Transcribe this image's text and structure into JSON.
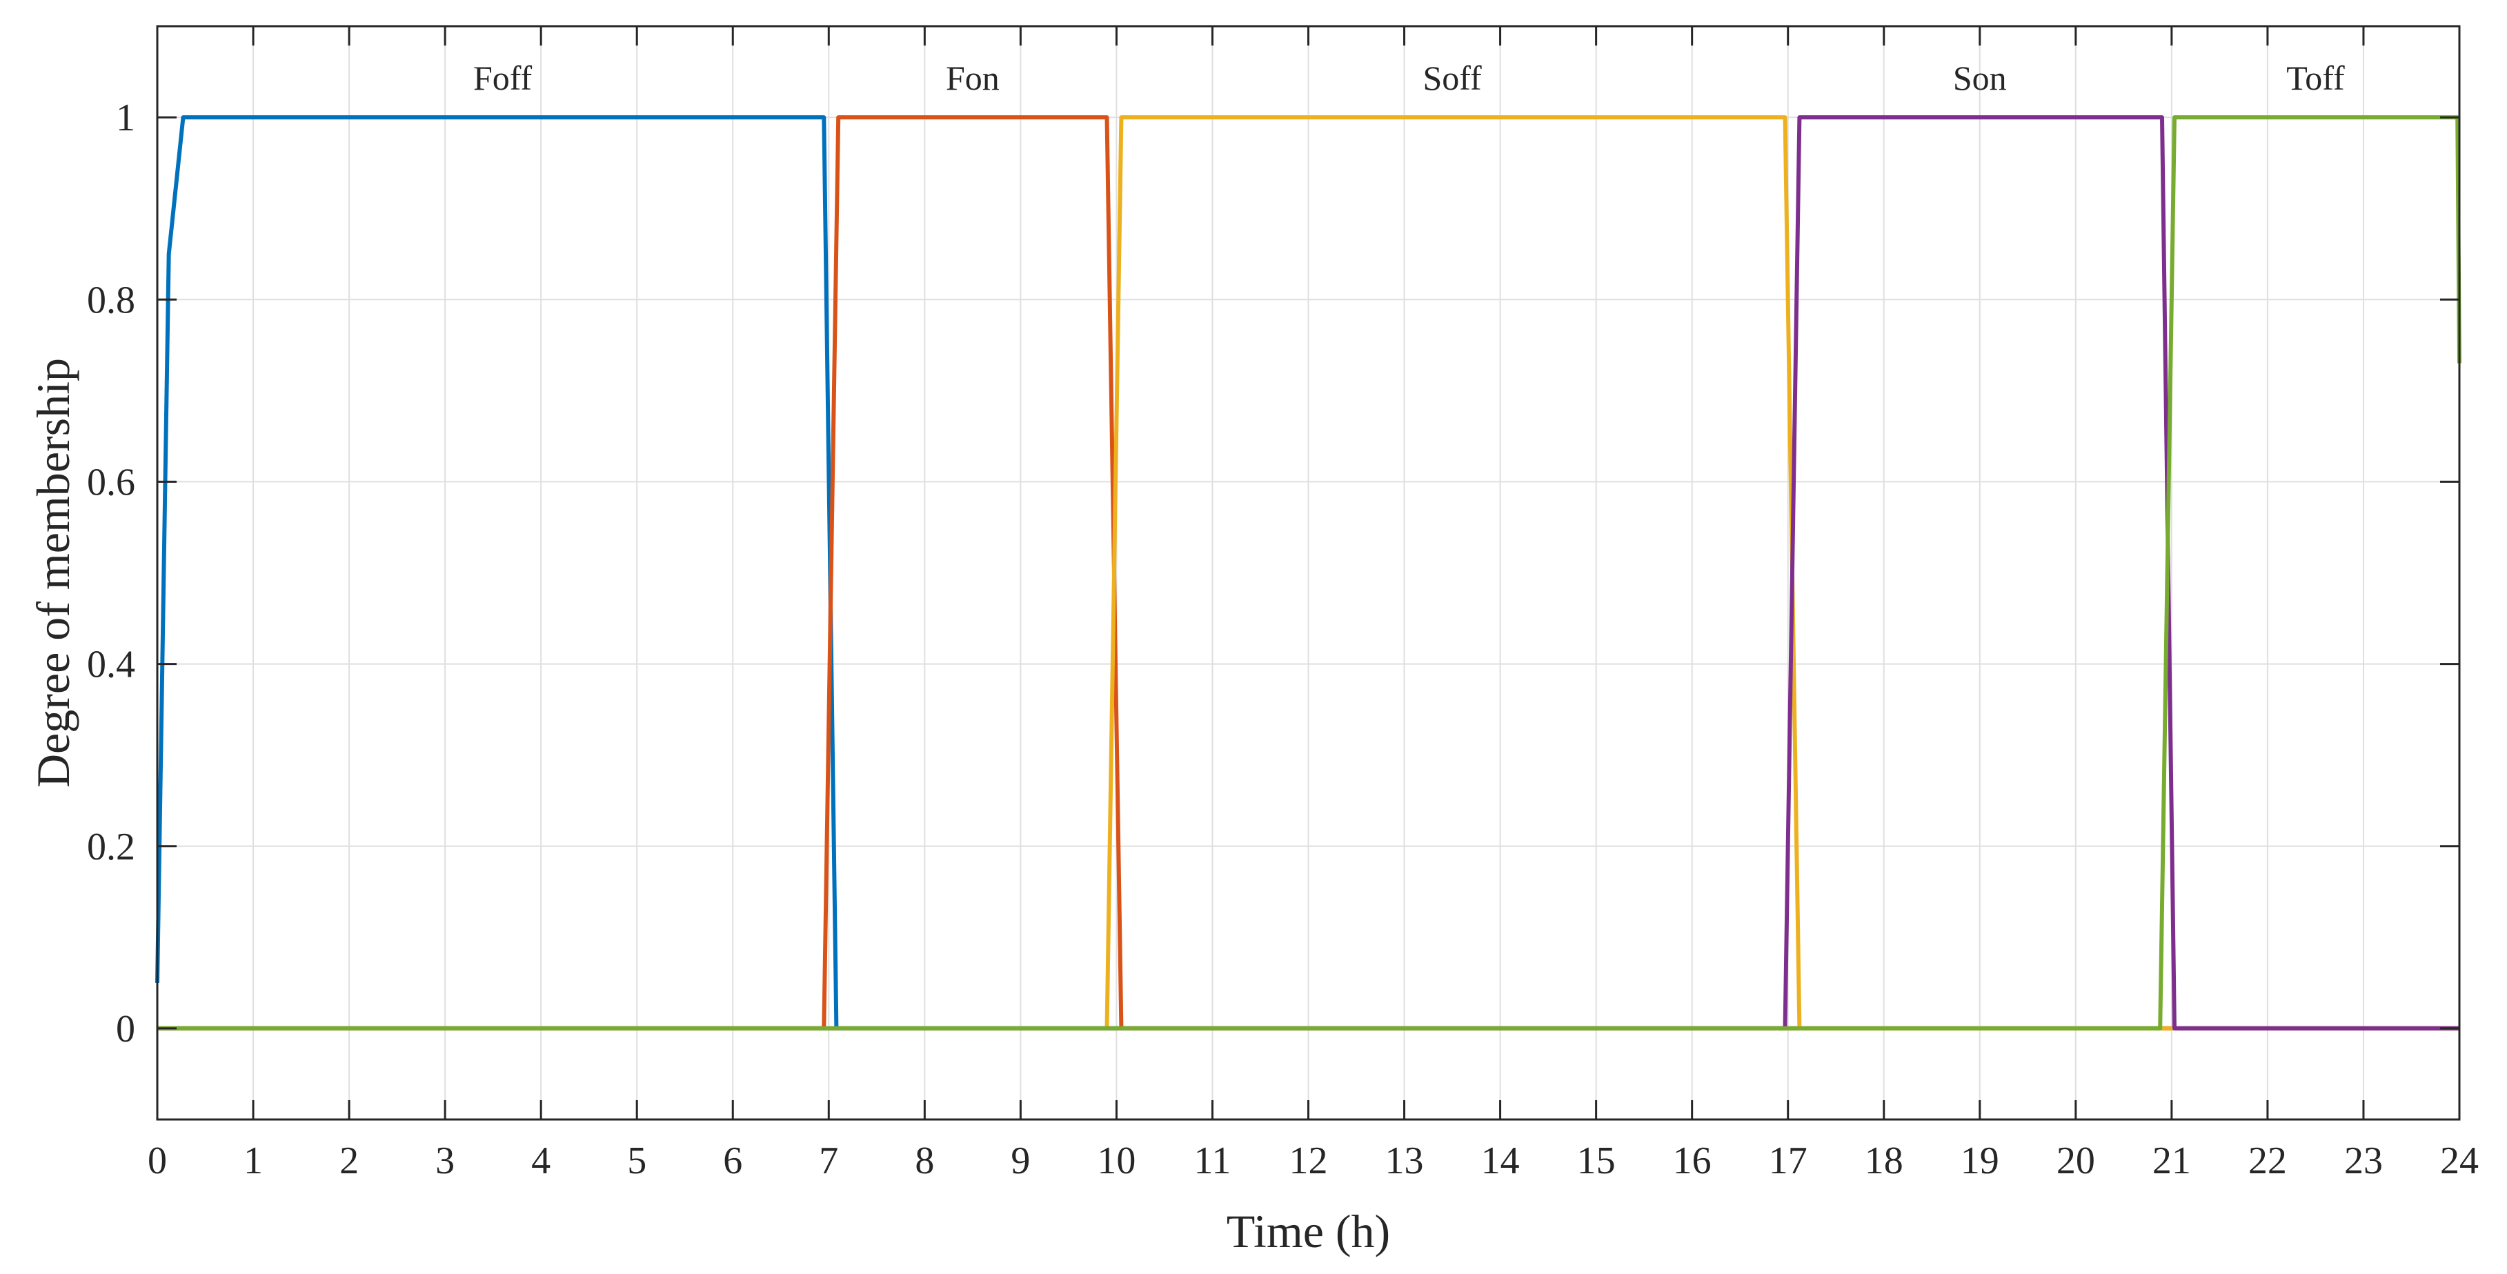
{
  "chart_data": {
    "type": "line",
    "xlabel": "Time (h)",
    "ylabel": "Degree of membership",
    "xlim": [
      0,
      24
    ],
    "ylim": [
      -0.1,
      1.1
    ],
    "xticks": [
      0,
      1,
      2,
      3,
      4,
      5,
      6,
      7,
      8,
      9,
      10,
      11,
      12,
      13,
      14,
      15,
      16,
      17,
      18,
      19,
      20,
      21,
      22,
      23,
      24
    ],
    "yticks": [
      0,
      0.2,
      0.4,
      0.6,
      0.8,
      1
    ],
    "ytick_labels": [
      "0",
      "0.2",
      "0.4",
      "0.6",
      "0.8",
      "1"
    ],
    "grid": true,
    "region_labels": [
      {
        "text": "Foff",
        "x": 3.6
      },
      {
        "text": "Fon",
        "x": 8.5
      },
      {
        "text": "Soff",
        "x": 13.5
      },
      {
        "text": "Son",
        "x": 19.0
      },
      {
        "text": "Toff",
        "x": 22.5
      }
    ],
    "series": [
      {
        "color": "#0072BD",
        "points": [
          [
            0,
            0.05
          ],
          [
            0.12,
            0.85
          ],
          [
            0.27,
            1
          ],
          [
            6.95,
            1
          ],
          [
            7.08,
            0
          ],
          [
            24,
            0
          ]
        ]
      },
      {
        "color": "#D95319",
        "points": [
          [
            0,
            0
          ],
          [
            6.95,
            0
          ],
          [
            7.1,
            1
          ],
          [
            9.9,
            1
          ],
          [
            10.05,
            0
          ],
          [
            24,
            0
          ]
        ]
      },
      {
        "color": "#EDB120",
        "points": [
          [
            0,
            0
          ],
          [
            9.9,
            0
          ],
          [
            10.05,
            1
          ],
          [
            16.97,
            1
          ],
          [
            17.12,
            0
          ],
          [
            24,
            0
          ]
        ]
      },
      {
        "color": "#7E2F8E",
        "points": [
          [
            0,
            0
          ],
          [
            16.97,
            0
          ],
          [
            17.12,
            1
          ],
          [
            20.9,
            1
          ],
          [
            21.03,
            0
          ],
          [
            24,
            0
          ]
        ]
      },
      {
        "color": "#77AC30",
        "points": [
          [
            0,
            0
          ],
          [
            20.88,
            0
          ],
          [
            21.03,
            1
          ],
          [
            23.98,
            1
          ],
          [
            24,
            0.73
          ]
        ]
      }
    ]
  }
}
